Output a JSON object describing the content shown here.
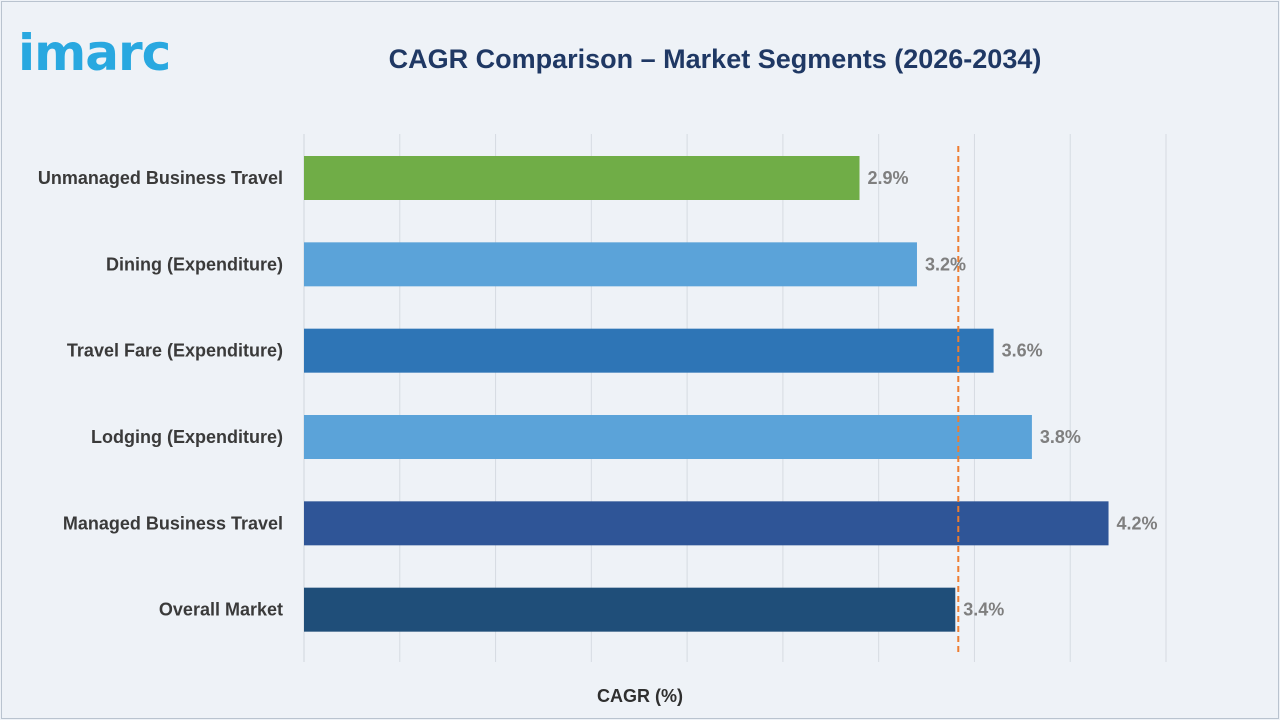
{
  "header": {
    "logo_text": "imarc",
    "logo_color": "#29a8e0",
    "title": "CAGR Comparison – Market Segments (2026-2034)"
  },
  "chart_data": {
    "type": "bar",
    "orientation": "horizontal",
    "categories": [
      "Unmanaged Business Travel",
      "Dining (Expenditure)",
      "Travel Fare (Expenditure)",
      "Lodging (Expenditure)",
      "Managed Business Travel",
      "Overall Market"
    ],
    "values": [
      2.9,
      3.2,
      3.6,
      3.8,
      4.2,
      3.4
    ],
    "value_labels": [
      "2.9%",
      "3.2%",
      "3.6%",
      "3.8%",
      "4.2%",
      "3.4%"
    ],
    "bar_colors": [
      "#70ad47",
      "#5ba3d9",
      "#2e75b6",
      "#5ba3d9",
      "#2f5597",
      "#1f4e79"
    ],
    "reference_line": {
      "value": 3.4,
      "style": "dashed",
      "color": "#ed7d31"
    },
    "xlabel": "CAGR (%)",
    "ylabel": "",
    "xlim": [
      0,
      4.5
    ],
    "grid": "vertical"
  }
}
